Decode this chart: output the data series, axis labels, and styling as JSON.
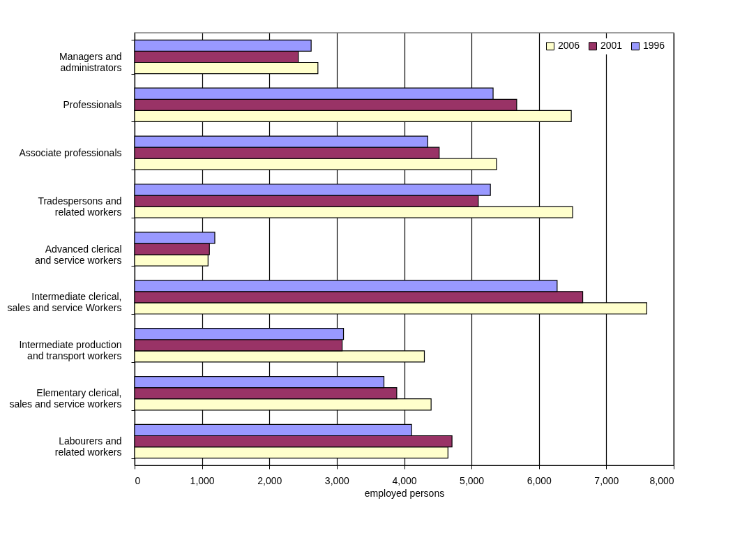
{
  "chart_data": {
    "type": "bar",
    "orientation": "horizontal",
    "xlabel": "employed persons",
    "categories": [
      "Managers and administrators",
      "Professionals",
      "Associate professionals",
      "Tradespersons and related workers",
      "Advanced clerical and service workers",
      "Intermediate clerical, sales and service Workers",
      "Intermediate production and transport workers",
      "Elementary clerical, sales and service workers",
      "Labourers and related workers"
    ],
    "series": [
      {
        "name": "2006",
        "color": "#ffffcc",
        "values": [
          2720,
          6480,
          5370,
          6500,
          1090,
          7600,
          4300,
          4400,
          4650
        ]
      },
      {
        "name": "2001",
        "color": "#993366",
        "values": [
          2430,
          5670,
          4520,
          5100,
          1110,
          6650,
          3080,
          3890,
          4710
        ]
      },
      {
        "name": "1996",
        "color": "#9999ff",
        "values": [
          2620,
          5320,
          4350,
          5280,
          1190,
          6270,
          3100,
          3700,
          4110
        ]
      }
    ],
    "xlim": [
      0,
      8000
    ],
    "xticks": [
      0,
      {
        "value": 1000,
        "label": "1,000"
      },
      {
        "value": 2000,
        "label": "2,000"
      },
      {
        "value": 3000,
        "label": "3,000"
      },
      {
        "value": 4000,
        "label": "4,000"
      },
      {
        "value": 5000,
        "label": "5,000"
      },
      {
        "value": 6000,
        "label": "6,000"
      },
      {
        "value": 7000,
        "label": "7,000"
      },
      {
        "value": 8000,
        "label": "8,000"
      }
    ],
    "grid": "x",
    "legend": "top right"
  }
}
